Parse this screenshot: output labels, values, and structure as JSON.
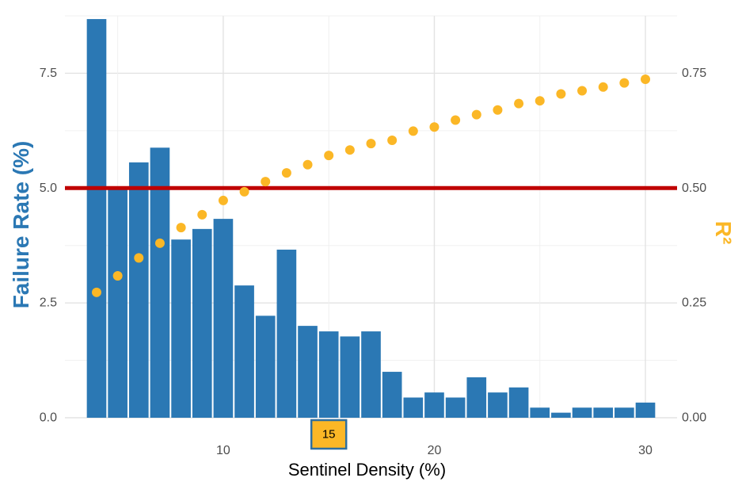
{
  "chart_data": {
    "type": "bar",
    "xlabel": "Sentinel Density (%)",
    "ylabel": "Failure Rate (%)",
    "ylabel_right": "R²",
    "xlim": [
      2.5,
      31.5
    ],
    "ylim": [
      0,
      8.75
    ],
    "ylim_right": [
      0,
      0.875
    ],
    "x_ticks": [
      10,
      20,
      30
    ],
    "y_ticks": [
      0.0,
      2.5,
      5.0,
      7.5
    ],
    "y_tick_labels": [
      "0.0",
      "2.5",
      "5.0",
      "7.5"
    ],
    "y_right_ticks": [
      0.0,
      0.25,
      0.5,
      0.75
    ],
    "y_right_tick_labels": [
      "0.00",
      "0.25",
      "0.50",
      "0.75"
    ],
    "grid": true,
    "series": [
      {
        "type": "bar",
        "color": "#2b78b4",
        "x": [
          4,
          5,
          6,
          7,
          8,
          9,
          10,
          11,
          12,
          13,
          14,
          15,
          16,
          17,
          18,
          19,
          20,
          21,
          22,
          23,
          24,
          25,
          26,
          27,
          28,
          29,
          30
        ],
        "values": [
          8.68,
          5.0,
          5.56,
          5.88,
          3.88,
          4.11,
          4.33,
          2.88,
          2.22,
          3.66,
          2.0,
          1.88,
          1.77,
          1.88,
          1.0,
          0.44,
          0.55,
          0.44,
          0.88,
          0.55,
          0.66,
          0.22,
          0.11,
          0.22,
          0.22,
          0.22,
          0.33
        ]
      },
      {
        "type": "scatter",
        "axis": "right",
        "color": "#fbb726",
        "x": [
          4,
          5,
          6,
          7,
          8,
          9,
          10,
          11,
          12,
          13,
          14,
          15,
          16,
          17,
          18,
          19,
          20,
          21,
          22,
          23,
          24,
          25,
          26,
          27,
          28,
          29,
          30
        ],
        "values": [
          0.273,
          0.309,
          0.348,
          0.38,
          0.414,
          0.442,
          0.473,
          0.492,
          0.514,
          0.533,
          0.551,
          0.571,
          0.583,
          0.597,
          0.604,
          0.624,
          0.633,
          0.648,
          0.66,
          0.67,
          0.684,
          0.69,
          0.705,
          0.712,
          0.72,
          0.729,
          0.737
        ]
      }
    ],
    "reference_line": {
      "y": 5.0,
      "color": "#c00000"
    },
    "highlight": {
      "x": 15,
      "label": "15"
    }
  }
}
